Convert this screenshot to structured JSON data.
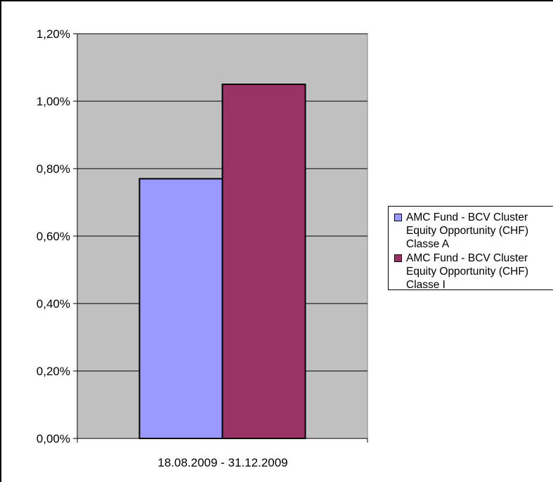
{
  "chart_data": {
    "type": "bar",
    "categories": [
      "18.08.2009 - 31.12.2009"
    ],
    "series": [
      {
        "name": "AMC Fund - BCV Cluster\nEquity Opportunity (CHF)\nClasse A",
        "values": [
          0.77
        ],
        "color": "#9999FF"
      },
      {
        "name": "AMC Fund - BCV Cluster\nEquity Opportunity (CHF)\nClasse I",
        "values": [
          1.05
        ],
        "color": "#993366"
      }
    ],
    "y_ticks": [
      "0,00%",
      "0,20%",
      "0,40%",
      "0,60%",
      "0,80%",
      "1,00%",
      "1,20%"
    ],
    "ylim": [
      0,
      1.2
    ],
    "y_unit": "%",
    "grid": true,
    "legend_position": "right",
    "plot_background": "#C0C0C0"
  }
}
